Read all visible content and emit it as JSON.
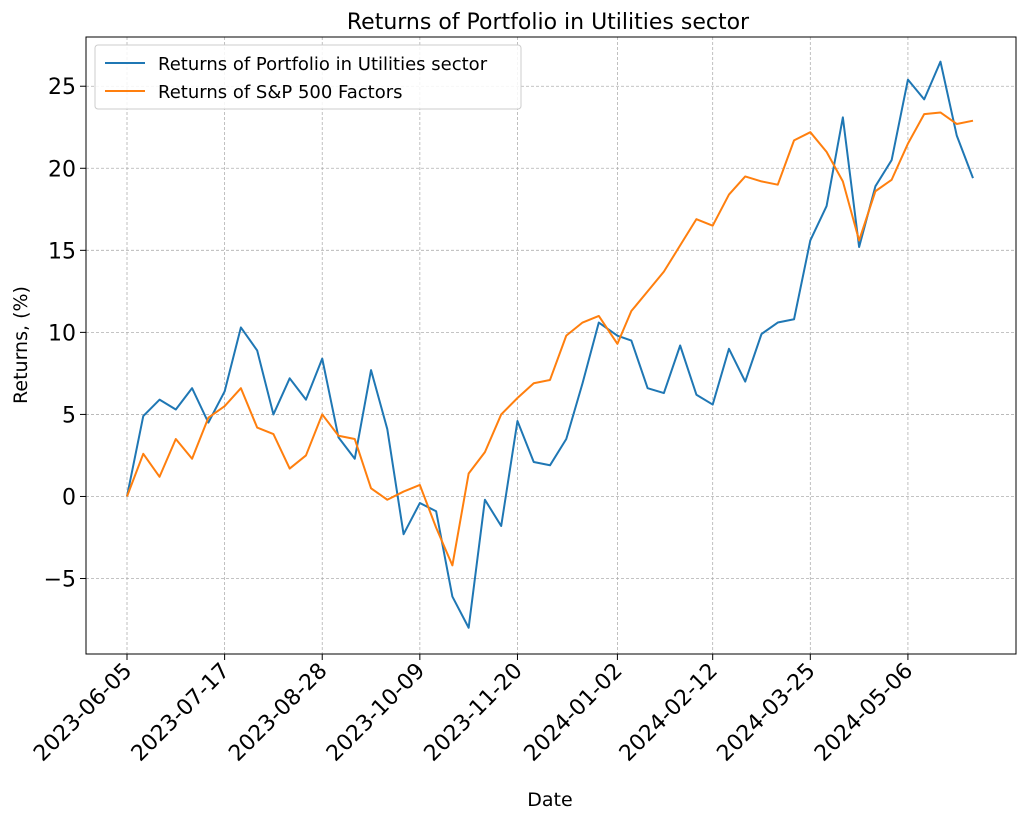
{
  "chart_data": {
    "type": "line",
    "title": "Returns of Portfolio in Utilities sector",
    "xlabel": "Date",
    "ylabel": "Returns, (%)",
    "grid": true,
    "legend_position": "top-left",
    "x_tick_labels": [
      "2023-06-05",
      "2023-07-17",
      "2023-08-28",
      "2023-10-09",
      "2023-11-20",
      "2024-01-02",
      "2024-02-12",
      "2024-03-25",
      "2024-05-06"
    ],
    "y_ticks": [
      -5,
      0,
      5,
      10,
      15,
      20,
      25
    ],
    "ylim": [
      -9.6,
      28.0
    ],
    "x": [
      "2023-06-05",
      "2023-06-12",
      "2023-06-19",
      "2023-06-26",
      "2023-07-03",
      "2023-07-10",
      "2023-07-17",
      "2023-07-24",
      "2023-07-31",
      "2023-08-07",
      "2023-08-14",
      "2023-08-21",
      "2023-08-28",
      "2023-09-04",
      "2023-09-11",
      "2023-09-18",
      "2023-09-25",
      "2023-10-02",
      "2023-10-09",
      "2023-10-16",
      "2023-10-23",
      "2023-10-30",
      "2023-11-06",
      "2023-11-13",
      "2023-11-20",
      "2023-11-27",
      "2023-12-04",
      "2023-12-11",
      "2023-12-18",
      "2023-12-25",
      "2024-01-02",
      "2024-01-08",
      "2024-01-15",
      "2024-01-22",
      "2024-01-29",
      "2024-02-05",
      "2024-02-12",
      "2024-02-19",
      "2024-02-26",
      "2024-03-04",
      "2024-03-11",
      "2024-03-18",
      "2024-03-25",
      "2024-04-01",
      "2024-04-08",
      "2024-04-15",
      "2024-04-22",
      "2024-04-29",
      "2024-05-06",
      "2024-05-13",
      "2024-05-20",
      "2024-05-27",
      "2024-06-03"
    ],
    "series": [
      {
        "name": "Returns of Portfolio in Utilities sector",
        "color": "#1f77b4",
        "values": [
          0.0,
          4.9,
          5.9,
          5.3,
          6.6,
          4.5,
          6.4,
          10.3,
          8.9,
          5.0,
          7.2,
          5.9,
          8.4,
          3.6,
          2.3,
          7.7,
          4.1,
          -2.3,
          -0.4,
          -0.9,
          -6.1,
          -8.0,
          -0.2,
          -1.8,
          4.6,
          2.1,
          1.9,
          3.5,
          6.9,
          10.6,
          9.8,
          9.5,
          6.6,
          6.3,
          9.2,
          6.2,
          5.6,
          9.0,
          7.0,
          9.9,
          10.6,
          10.8,
          15.6,
          17.7,
          23.1,
          15.2,
          18.9,
          20.5,
          25.4,
          24.2,
          26.5,
          22.0,
          19.4
        ]
      },
      {
        "name": "Returns of S&P 500 Factors",
        "color": "#ff7f0e",
        "values": [
          0.0,
          2.6,
          1.2,
          3.5,
          2.3,
          4.8,
          5.5,
          6.6,
          4.2,
          3.8,
          1.7,
          2.5,
          5.0,
          3.7,
          3.5,
          0.5,
          -0.2,
          0.3,
          0.7,
          -1.9,
          -4.2,
          1.4,
          2.7,
          5.0,
          6.0,
          6.9,
          7.1,
          9.8,
          10.6,
          11.0,
          9.3,
          11.3,
          12.5,
          13.7,
          15.3,
          16.9,
          16.5,
          18.4,
          19.5,
          19.2,
          19.0,
          21.7,
          22.2,
          21.0,
          19.2,
          15.6,
          18.6,
          19.3,
          21.5,
          23.3,
          23.4,
          22.7,
          22.9
        ]
      }
    ]
  }
}
